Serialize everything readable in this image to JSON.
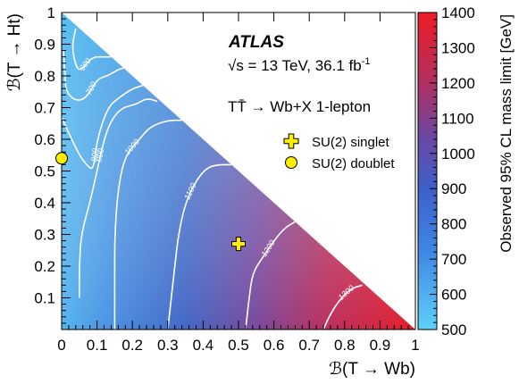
{
  "chart_data": {
    "type": "heatmap",
    "title": "ATLAS",
    "energy_label": "√s = 13 TeV, 36.1 fb",
    "energy_sup": "-1",
    "process_label": "TT̄ → Wb+X 1-lepton",
    "xlabel": "ℬ(T → Wb)",
    "ylabel": "ℬ(T → Ht)",
    "zlabel": "Observed 95% CL mass limit [GeV]",
    "xlim": [
      0,
      1
    ],
    "ylim": [
      0,
      1
    ],
    "zlim": [
      500,
      1400
    ],
    "x_ticks": [
      "0",
      "0.1",
      "0.2",
      "0.3",
      "0.4",
      "0.5",
      "0.6",
      "0.7",
      "0.8",
      "0.9",
      "1"
    ],
    "y_ticks": [
      "0.1",
      "0.2",
      "0.3",
      "0.4",
      "0.5",
      "0.6",
      "0.7",
      "0.8",
      "0.9",
      "1"
    ],
    "z_ticks": [
      "500",
      "600",
      "700",
      "800",
      "900",
      "1000",
      "1100",
      "1200",
      "1300",
      "1400"
    ],
    "contours": [
      {
        "level": "600",
        "points": [
          [
            0.04,
            0.95
          ],
          [
            0.03,
            0.9
          ],
          [
            0.035,
            0.85
          ],
          [
            0.05,
            0.81
          ],
          [
            0.085,
            0.86
          ],
          [
            0.12,
            0.86
          ],
          [
            0.14,
            0.86
          ]
        ]
      },
      {
        "level": "700",
        "points": [
          [
            0.005,
            0.88
          ],
          [
            0.01,
            0.8
          ],
          [
            0.012,
            0.75
          ],
          [
            0.04,
            0.72
          ],
          [
            0.07,
            0.73
          ],
          [
            0.1,
            0.79
          ],
          [
            0.13,
            0.8
          ],
          [
            0.16,
            0.82
          ],
          [
            0.175,
            0.825
          ]
        ]
      },
      {
        "level": "800",
        "points": [
          [
            0.0,
            0.67
          ],
          [
            0.02,
            0.62
          ],
          [
            0.05,
            0.55
          ],
          [
            0.07,
            0.52
          ],
          [
            0.09,
            0.5
          ],
          [
            0.1,
            0.6
          ],
          [
            0.13,
            0.7
          ],
          [
            0.16,
            0.73
          ],
          [
            0.2,
            0.76
          ],
          [
            0.23,
            0.77
          ]
        ]
      },
      {
        "level": "900",
        "points": [
          [
            0.05,
            0.1
          ],
          [
            0.05,
            0.2
          ],
          [
            0.055,
            0.3
          ],
          [
            0.08,
            0.4
          ],
          [
            0.1,
            0.5
          ],
          [
            0.12,
            0.6
          ],
          [
            0.14,
            0.66
          ],
          [
            0.17,
            0.7
          ],
          [
            0.21,
            0.71
          ],
          [
            0.24,
            0.73
          ],
          [
            0.27,
            0.72
          ]
        ]
      },
      {
        "level": "1000",
        "points": [
          [
            0.15,
            0.0
          ],
          [
            0.15,
            0.15
          ],
          [
            0.15,
            0.3
          ],
          [
            0.16,
            0.45
          ],
          [
            0.18,
            0.55
          ],
          [
            0.22,
            0.6
          ],
          [
            0.25,
            0.64
          ],
          [
            0.3,
            0.66
          ],
          [
            0.34,
            0.66
          ]
        ]
      },
      {
        "level": "1100",
        "points": [
          [
            0.3,
            0.0
          ],
          [
            0.31,
            0.1
          ],
          [
            0.32,
            0.2
          ],
          [
            0.33,
            0.3
          ],
          [
            0.35,
            0.4
          ],
          [
            0.38,
            0.47
          ],
          [
            0.41,
            0.51
          ],
          [
            0.44,
            0.52
          ],
          [
            0.48,
            0.52
          ]
        ]
      },
      {
        "level": "1200",
        "points": [
          [
            0.52,
            0.0
          ],
          [
            0.53,
            0.1
          ],
          [
            0.54,
            0.18
          ],
          [
            0.57,
            0.23
          ],
          [
            0.6,
            0.28
          ],
          [
            0.63,
            0.32
          ],
          [
            0.66,
            0.34
          ]
        ]
      },
      {
        "level": "1300",
        "points": [
          [
            0.74,
            0.0
          ],
          [
            0.76,
            0.05
          ],
          [
            0.79,
            0.1
          ],
          [
            0.82,
            0.13
          ],
          [
            0.85,
            0.14
          ]
        ]
      }
    ],
    "markers": [
      {
        "name": "SU(2) singlet",
        "shape": "cross",
        "x": 0.5,
        "y": 0.27,
        "color": "#ffee00"
      },
      {
        "name": "SU(2) doublet",
        "shape": "circle",
        "x": 0.0,
        "y": 0.54,
        "color": "#ffee00"
      }
    ],
    "colors": {
      "scale": [
        "#5bc8f5",
        "#4a90e0",
        "#3e6fcc",
        "#6a4fa8",
        "#a33a78",
        "#d9263a",
        "#e8202a"
      ]
    }
  }
}
